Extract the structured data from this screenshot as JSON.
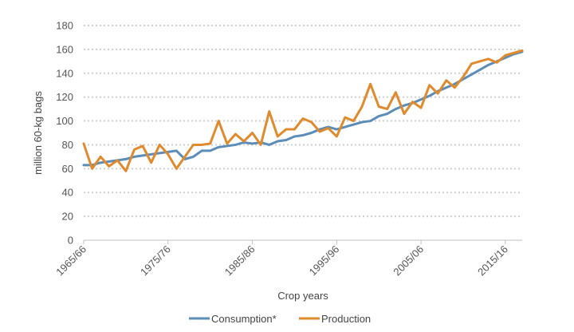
{
  "chart_data": {
    "type": "line",
    "xlabel": "Crop years",
    "ylabel": "million 60-kg bags",
    "ylim": [
      0,
      180
    ],
    "yticks": [
      0,
      20,
      40,
      60,
      80,
      100,
      120,
      140,
      160,
      180
    ],
    "grid": true,
    "legend_position": "bottom",
    "x_tick_labels": [
      "1965/66",
      "1975/76",
      "1985/86",
      "1995/96",
      "2005/06",
      "2015/16"
    ],
    "x": [
      "1965/66",
      "1966/67",
      "1967/68",
      "1968/69",
      "1969/70",
      "1970/71",
      "1971/72",
      "1972/73",
      "1973/74",
      "1974/75",
      "1975/76",
      "1976/77",
      "1977/78",
      "1978/79",
      "1979/80",
      "1980/81",
      "1981/82",
      "1982/83",
      "1983/84",
      "1984/85",
      "1985/86",
      "1986/87",
      "1987/88",
      "1988/89",
      "1989/90",
      "1990/91",
      "1991/92",
      "1992/93",
      "1993/94",
      "1994/95",
      "1995/96",
      "1996/97",
      "1997/98",
      "1998/99",
      "1999/00",
      "2000/01",
      "2001/02",
      "2002/03",
      "2003/04",
      "2004/05",
      "2005/06",
      "2006/07",
      "2007/08",
      "2008/09",
      "2009/10",
      "2010/11",
      "2011/12",
      "2012/13",
      "2013/14",
      "2014/15",
      "2015/16",
      "2016/17",
      "2017/18"
    ],
    "series": [
      {
        "name": "Consumption*",
        "color": "#5b8db8",
        "values": [
          63,
          63,
          65,
          66,
          67,
          68,
          70,
          71,
          72,
          73,
          74,
          75,
          68,
          70,
          75,
          75,
          78,
          79,
          80,
          82,
          81,
          82,
          80,
          83,
          84,
          87,
          88,
          90,
          93,
          95,
          93,
          95,
          97,
          99,
          100,
          104,
          106,
          110,
          113,
          115,
          118,
          121,
          125,
          128,
          131,
          135,
          139,
          143,
          147,
          150,
          153,
          156,
          158
        ]
      },
      {
        "name": "Production",
        "color": "#e08a2e",
        "values": [
          81,
          60,
          70,
          62,
          67,
          58,
          76,
          79,
          65,
          80,
          72,
          60,
          70,
          80,
          80,
          81,
          100,
          81,
          89,
          83,
          90,
          80,
          108,
          87,
          93,
          93,
          102,
          99,
          91,
          94,
          87,
          103,
          100,
          112,
          131,
          112,
          110,
          124,
          106,
          116,
          111,
          130,
          123,
          134,
          128,
          137,
          148,
          150,
          152,
          149,
          155,
          157,
          159
        ]
      }
    ]
  }
}
